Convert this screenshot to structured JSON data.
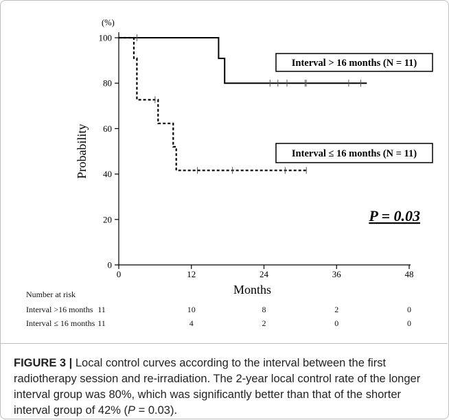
{
  "chart_data": {
    "type": "line",
    "y_unit_label": "(%)",
    "xlabel": "Months",
    "ylabel": "Probability",
    "xlim": [
      0,
      48
    ],
    "ylim": [
      0,
      100
    ],
    "x_ticks": [
      0,
      12,
      24,
      36,
      48
    ],
    "y_ticks": [
      0,
      20,
      40,
      60,
      80,
      100
    ],
    "series": [
      {
        "name": "Interval > 16 months (N = 11)",
        "style": "solid",
        "color": "#000000",
        "steps": [
          [
            0,
            100
          ],
          [
            16.5,
            100
          ],
          [
            16.5,
            90.9
          ],
          [
            17.5,
            90.9
          ],
          [
            17.5,
            80
          ],
          [
            41,
            80
          ]
        ],
        "censored": [
          3,
          25,
          26.3,
          27.8,
          30.8,
          31,
          38,
          40
        ]
      },
      {
        "name": "Interval ≤ 16 months (N = 11)",
        "style": "dashed",
        "color": "#000000",
        "steps": [
          [
            0,
            100
          ],
          [
            2.5,
            100
          ],
          [
            2.5,
            91
          ],
          [
            3,
            91
          ],
          [
            3,
            72.7
          ],
          [
            6.5,
            72.7
          ],
          [
            6.5,
            62.3
          ],
          [
            9,
            62.3
          ],
          [
            9,
            52
          ],
          [
            9.5,
            52
          ],
          [
            9.5,
            41.6
          ],
          [
            31,
            41.6
          ]
        ],
        "censored": [
          6,
          13,
          18.8,
          27.5,
          31
        ]
      }
    ],
    "p_value_text": "P = 0.03",
    "risk_table": {
      "title": "Number at risk",
      "rows": [
        {
          "label": "Interval >16 months",
          "values": [
            "11",
            "10",
            "8",
            "2",
            "0"
          ]
        },
        {
          "label": "Interval ≤ 16 months",
          "values": [
            "11",
            "4",
            "2",
            "0",
            "0"
          ]
        }
      ]
    }
  },
  "caption": {
    "label": "FIGURE 3 |",
    "text_before_p": " Local control curves according to the interval between the first radiotherapy session and re-irradiation. The 2-year local control rate of the longer interval group was 80%, which was significantly better than that of the shorter interval group of 42% (",
    "p_symbol": "P",
    "text_after_p": " = 0.03)."
  }
}
